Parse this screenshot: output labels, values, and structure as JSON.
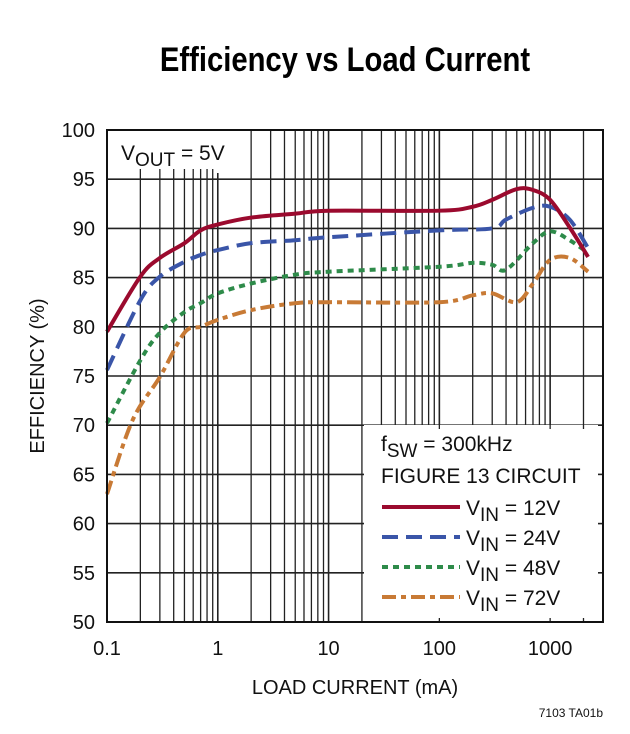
{
  "chart_data": {
    "type": "line",
    "title": "Efficiency vs Load Current",
    "xlabel": "LOAD CURRENT (mA)",
    "ylabel": "EFFICIENCY (%)",
    "x_scale": "log",
    "xlim": [
      0.1,
      3000
    ],
    "ylim": [
      50,
      100
    ],
    "grid": true,
    "x_ticks": [
      "0.1",
      "1",
      "10",
      "100",
      "1000"
    ],
    "y_ticks": [
      "50",
      "55",
      "60",
      "65",
      "70",
      "75",
      "80",
      "85",
      "90",
      "95",
      "100"
    ],
    "annotation": {
      "main": "V",
      "sub": "OUT",
      "rest": " = 5V"
    },
    "legend_header": [
      {
        "main": "f",
        "sub": "SW",
        "rest": " = 300kHz"
      },
      {
        "main": "FIGURE 13 CIRCUIT",
        "sub": "",
        "rest": ""
      }
    ],
    "legend_position": "bottom-right",
    "footnote": "7103 TA01b",
    "series": [
      {
        "name_main": "V",
        "name_sub": "IN",
        "name_rest": " = 12V",
        "color": "#9b0a2e",
        "style": "solid",
        "x": [
          0.1,
          0.2,
          0.3,
          0.5,
          0.7,
          1,
          2,
          5,
          10,
          100,
          200,
          300,
          500,
          700,
          1000,
          1500,
          2200
        ],
        "y": [
          79.5,
          85.1,
          87.0,
          88.5,
          89.8,
          90.4,
          91.1,
          91.5,
          91.8,
          91.8,
          92.2,
          92.9,
          94.0,
          93.9,
          92.9,
          90.1,
          87.1
        ]
      },
      {
        "name_main": "V",
        "name_sub": "IN",
        "name_rest": " = 24V",
        "color": "#3a55a8",
        "style": "dashed",
        "x": [
          0.1,
          0.2,
          0.3,
          0.5,
          0.7,
          1,
          2,
          5,
          10,
          100,
          300,
          400,
          700,
          1000,
          1500,
          2200
        ],
        "y": [
          75.6,
          82.7,
          85.1,
          86.6,
          87.3,
          87.8,
          88.5,
          88.8,
          89.1,
          89.8,
          90.0,
          90.9,
          92.1,
          92.2,
          90.9,
          88.0
        ]
      },
      {
        "name_main": "V",
        "name_sub": "IN",
        "name_rest": " = 48V",
        "color": "#2e8b4a",
        "style": "dotted",
        "x": [
          0.1,
          0.2,
          0.3,
          0.5,
          0.7,
          1,
          2,
          5,
          10,
          100,
          200,
          300,
          400,
          700,
          1000,
          1500,
          2200
        ],
        "y": [
          70.2,
          76.6,
          79.4,
          81.5,
          82.4,
          83.4,
          84.4,
          85.3,
          85.6,
          86.1,
          86.5,
          86.3,
          85.8,
          88.5,
          89.7,
          88.8,
          87.5
        ]
      },
      {
        "name_main": "V",
        "name_sub": "IN",
        "name_rest": " = 72V",
        "color": "#c87a35",
        "style": "dash-dot",
        "x": [
          0.1,
          0.17,
          0.3,
          0.5,
          0.7,
          1,
          2,
          5,
          10,
          100,
          200,
          300,
          500,
          700,
          1000,
          1500,
          2200
        ],
        "y": [
          63.0,
          70.5,
          74.9,
          79.4,
          80.0,
          80.7,
          81.7,
          82.4,
          82.5,
          82.5,
          83.2,
          83.4,
          82.5,
          84.4,
          86.8,
          87.0,
          85.6
        ]
      }
    ]
  }
}
